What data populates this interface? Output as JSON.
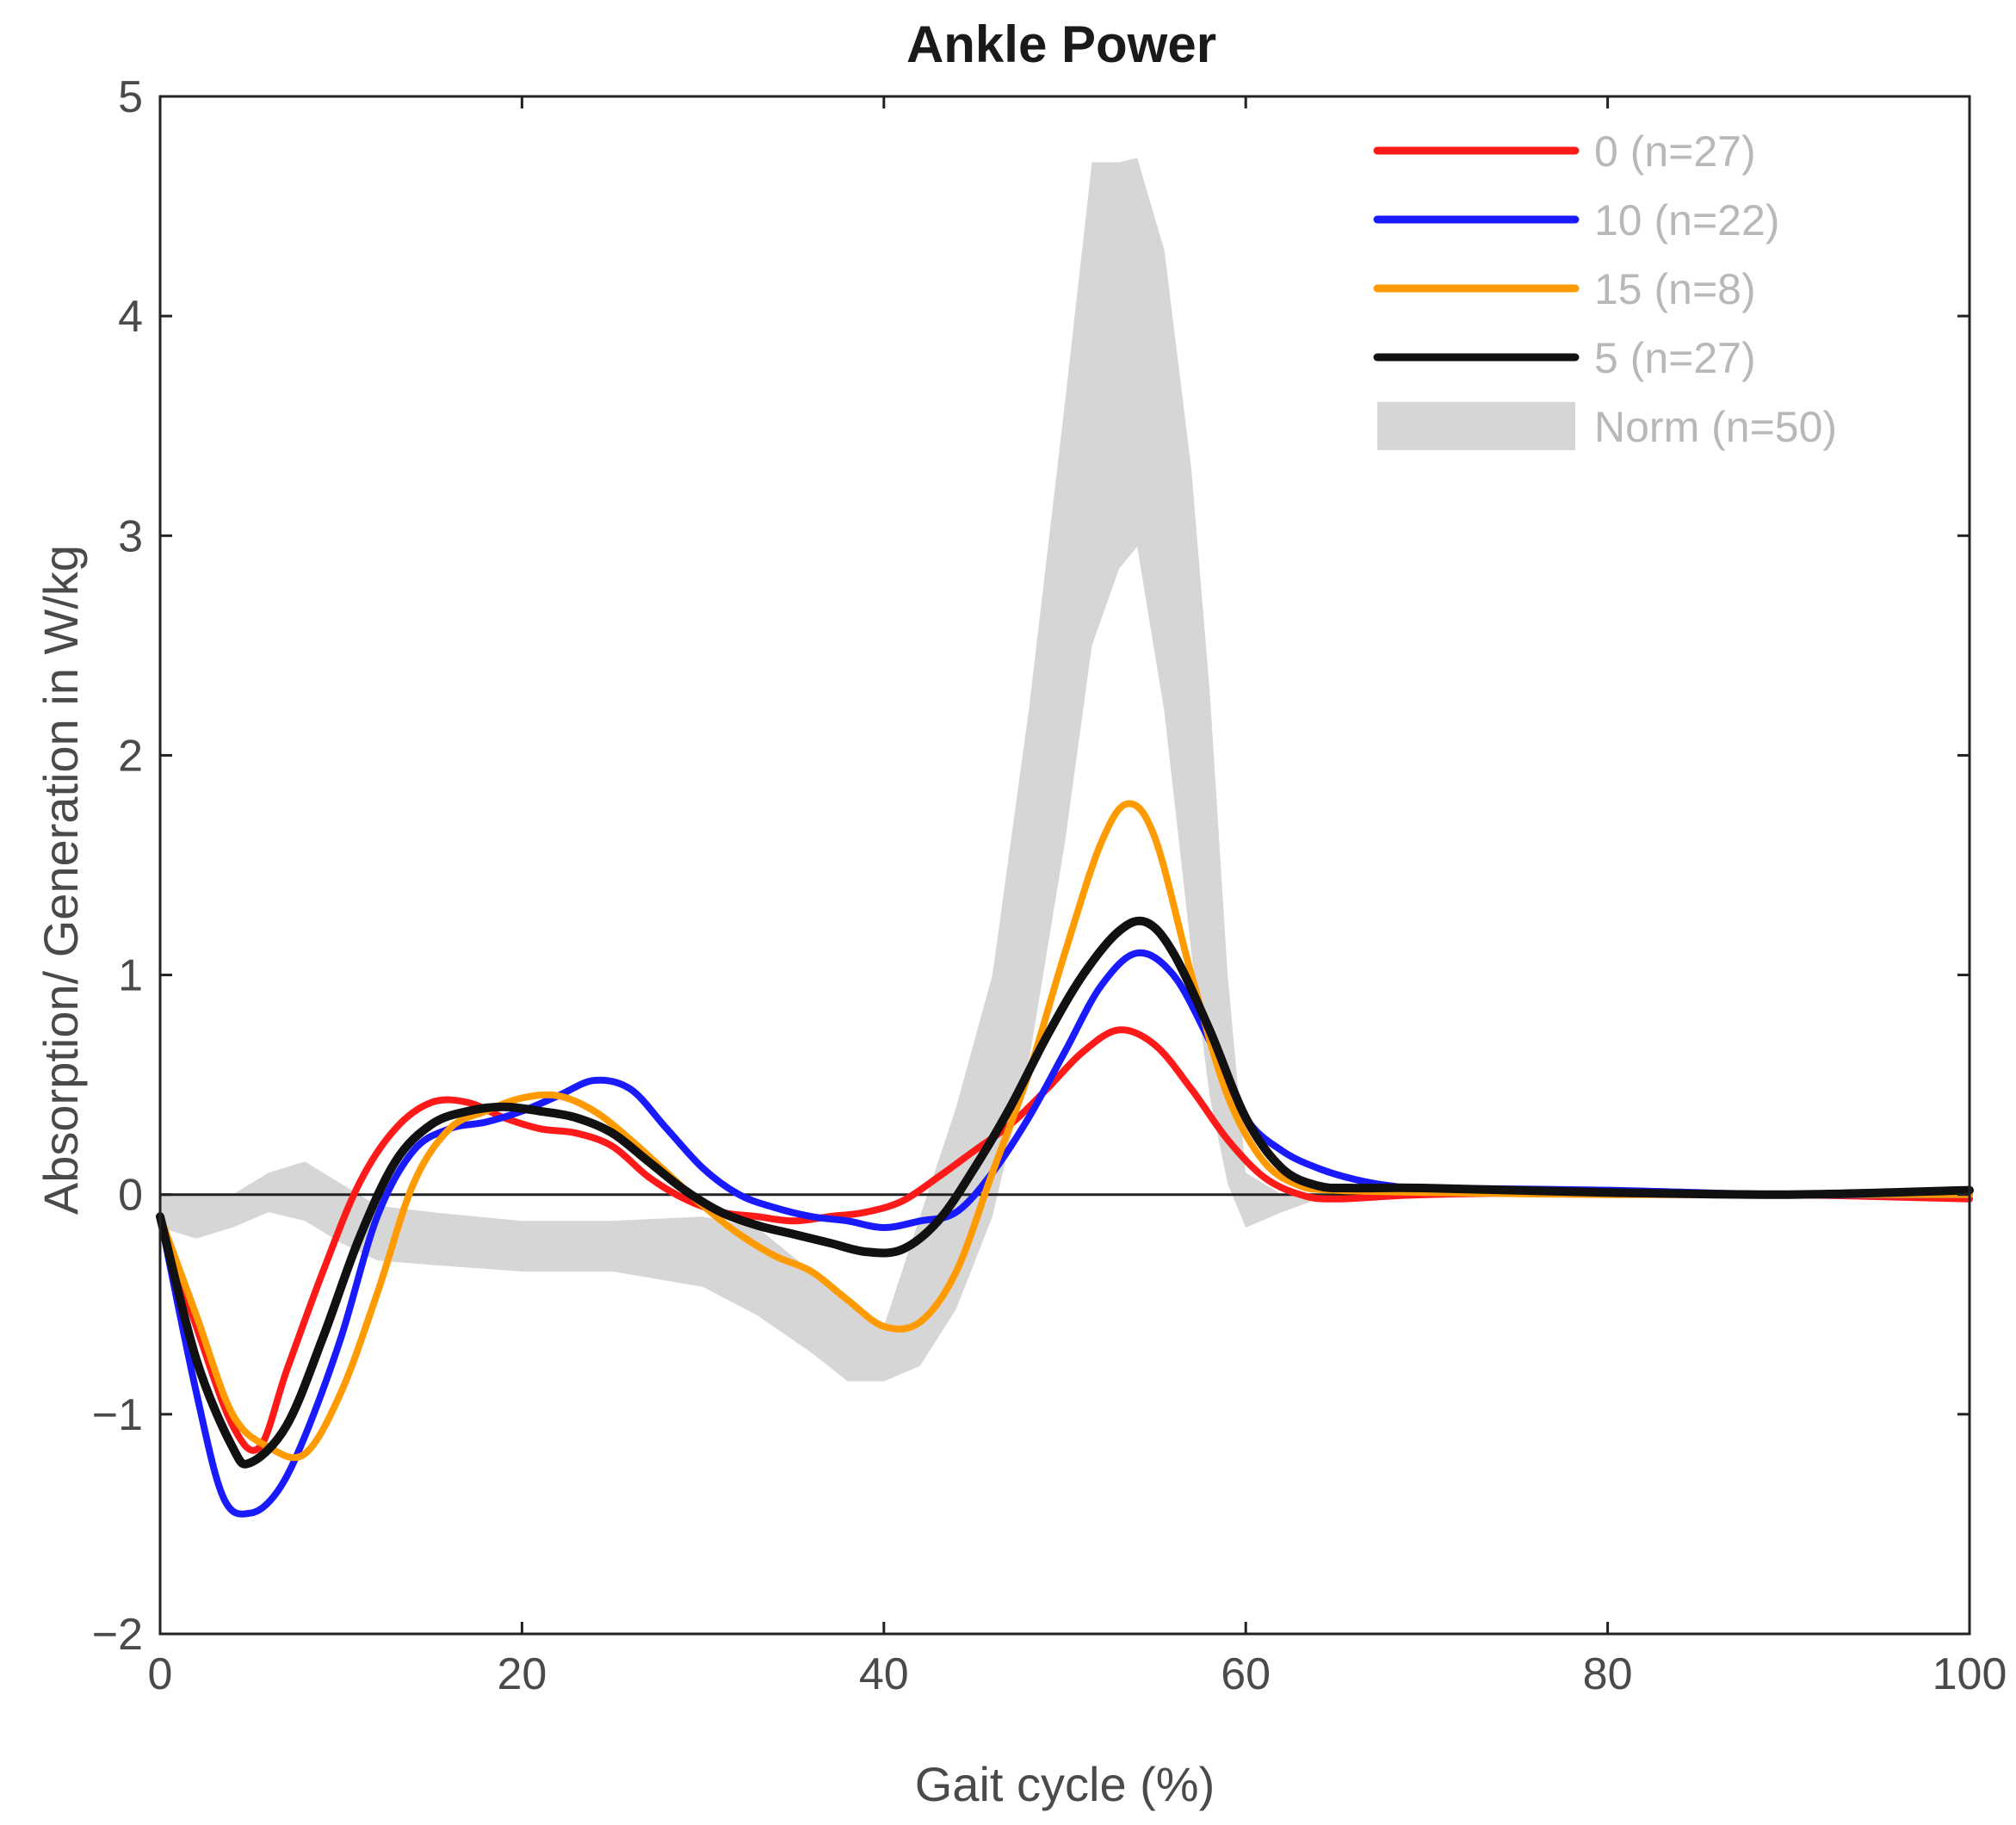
{
  "chart_data": {
    "type": "line",
    "title": "Ankle Power",
    "xlabel": "Gait cycle (%)",
    "ylabel": "Absorption/ Generation in W/kg",
    "xlim": [
      0,
      100
    ],
    "ylim": [
      -2,
      5
    ],
    "xticks": [
      0,
      20,
      40,
      60,
      80,
      100
    ],
    "yticks": [
      -2,
      -1,
      0,
      1,
      2,
      3,
      4,
      5
    ],
    "ytick_labels": [
      "−2",
      "−1",
      "0",
      "1",
      "2",
      "3",
      "4",
      "5"
    ],
    "grid": false,
    "zero_line": true,
    "legend_position": "top-right",
    "series": [
      {
        "name": "0 (n=27)",
        "color": "#ff1a1a",
        "x": [
          0,
          2,
          4,
          5.5,
          7,
          9,
          11,
          13,
          15,
          17,
          19,
          21,
          23,
          25,
          27,
          29,
          31,
          33,
          35,
          37,
          39,
          41,
          43,
          45,
          47,
          49,
          51,
          53,
          55,
          57,
          59,
          61,
          63,
          65,
          70,
          80,
          90,
          100
        ],
        "values": [
          -0.1,
          -0.6,
          -1.05,
          -1.15,
          -0.8,
          -0.35,
          0.05,
          0.3,
          0.42,
          0.42,
          0.35,
          0.3,
          0.28,
          0.22,
          0.08,
          -0.02,
          -0.08,
          -0.1,
          -0.12,
          -0.1,
          -0.08,
          -0.03,
          0.08,
          0.2,
          0.32,
          0.48,
          0.65,
          0.75,
          0.68,
          0.48,
          0.25,
          0.08,
          0.0,
          -0.02,
          0.0,
          0.01,
          0.0,
          -0.02
        ]
      },
      {
        "name": "10 (n=22)",
        "color": "#1a1aff",
        "x": [
          0,
          2,
          3.5,
          5,
          6.5,
          8,
          10,
          12,
          14,
          16,
          18,
          20,
          22,
          24,
          26,
          28,
          30,
          32,
          34,
          36,
          38,
          40,
          42,
          44,
          46,
          48,
          50,
          52,
          54,
          56,
          58,
          60,
          62,
          64,
          66,
          68,
          70,
          80,
          90,
          100
        ],
        "values": [
          -0.1,
          -0.9,
          -1.38,
          -1.45,
          -1.35,
          -1.1,
          -0.65,
          -0.1,
          0.2,
          0.3,
          0.33,
          0.38,
          0.45,
          0.52,
          0.48,
          0.3,
          0.12,
          0.0,
          -0.06,
          -0.1,
          -0.12,
          -0.15,
          -0.12,
          -0.08,
          0.1,
          0.35,
          0.65,
          0.95,
          1.1,
          1.0,
          0.7,
          0.35,
          0.2,
          0.12,
          0.07,
          0.04,
          0.03,
          0.02,
          0.0,
          0.0
        ]
      },
      {
        "name": "15 (n=8)",
        "color": "#ff9a00",
        "x": [
          0,
          2,
          4,
          6,
          8,
          10,
          12,
          14,
          16,
          18,
          20,
          22,
          24,
          26,
          28,
          30,
          32,
          34,
          36,
          38,
          40,
          42,
          44,
          46,
          48,
          50,
          52,
          53.5,
          55,
          57,
          59,
          61,
          63,
          65,
          70,
          80,
          90,
          100
        ],
        "values": [
          -0.1,
          -0.55,
          -1.0,
          -1.15,
          -1.18,
          -0.9,
          -0.45,
          0.05,
          0.3,
          0.38,
          0.44,
          0.45,
          0.38,
          0.25,
          0.1,
          -0.05,
          -0.18,
          -0.28,
          -0.35,
          -0.48,
          -0.6,
          -0.58,
          -0.35,
          0.1,
          0.55,
          1.1,
          1.6,
          1.78,
          1.62,
          1.0,
          0.45,
          0.15,
          0.04,
          0.02,
          0.01,
          0.0,
          0.0,
          0.0
        ]
      },
      {
        "name": "5 (n=27)",
        "color": "#111111",
        "x": [
          0,
          2,
          4,
          5,
          7,
          9,
          11,
          13,
          15,
          17,
          19,
          21,
          23,
          25,
          27,
          29,
          31,
          33,
          35,
          37,
          39,
          41,
          43,
          45,
          47,
          49,
          51,
          53,
          54.5,
          56,
          58,
          60,
          62,
          64,
          66,
          70,
          80,
          90,
          100
        ],
        "values": [
          -0.1,
          -0.75,
          -1.15,
          -1.22,
          -1.05,
          -0.65,
          -0.2,
          0.15,
          0.32,
          0.38,
          0.4,
          0.38,
          0.35,
          0.28,
          0.15,
          0.02,
          -0.08,
          -0.14,
          -0.18,
          -0.22,
          -0.26,
          -0.25,
          -0.12,
          0.12,
          0.4,
          0.72,
          1.0,
          1.2,
          1.24,
          1.1,
          0.75,
          0.35,
          0.12,
          0.04,
          0.03,
          0.03,
          0.01,
          0.0,
          0.02
        ]
      }
    ],
    "band": {
      "name": "Norm (n=50)",
      "color": "#d6d6d6",
      "x": [
        0,
        2,
        4,
        6,
        8,
        10,
        12,
        15,
        20,
        25,
        30,
        33,
        36,
        38,
        40,
        42,
        43,
        44,
        46,
        48,
        50,
        51.5,
        53,
        54,
        55.5,
        57,
        58,
        59,
        60,
        62,
        64,
        66,
        100
      ],
      "upper": [
        0.0,
        0.0,
        0.0,
        0.1,
        0.15,
        0.05,
        -0.05,
        -0.08,
        -0.12,
        -0.12,
        -0.1,
        -0.15,
        -0.35,
        -0.5,
        -0.6,
        -0.1,
        0.15,
        0.4,
        1.0,
        2.2,
        3.6,
        4.7,
        4.7,
        4.72,
        4.3,
        3.3,
        2.3,
        1.0,
        0.1,
        0.0,
        0.0,
        0.0,
        0.0
      ],
      "lower": [
        -0.15,
        -0.2,
        -0.15,
        -0.08,
        -0.12,
        -0.22,
        -0.3,
        -0.32,
        -0.35,
        -0.35,
        -0.42,
        -0.55,
        -0.72,
        -0.85,
        -0.85,
        -0.78,
        -0.65,
        -0.52,
        -0.1,
        0.6,
        1.6,
        2.5,
        2.85,
        2.95,
        2.2,
        1.1,
        0.45,
        0.05,
        -0.15,
        -0.08,
        -0.02,
        0.0,
        0.0
      ]
    }
  }
}
